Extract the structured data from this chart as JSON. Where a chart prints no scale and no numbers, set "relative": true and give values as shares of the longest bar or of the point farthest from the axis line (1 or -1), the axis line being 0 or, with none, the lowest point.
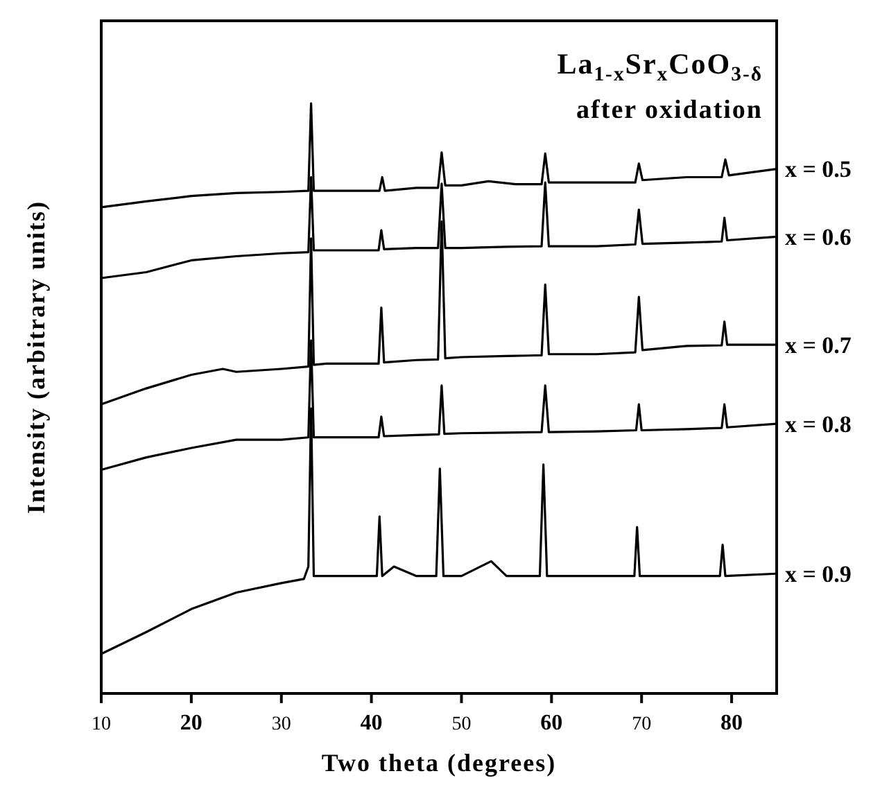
{
  "chart_data": {
    "type": "line",
    "title": "La$_{1-x}$Sr$_{x}$CoO$_{3-δ}$",
    "subtitle": "after oxidation",
    "xlabel": "Two theta (degrees)",
    "ylabel": "Intensity (arbitrary units)",
    "relative": true,
    "xlim": [
      10,
      85
    ],
    "xticks": [
      10,
      20,
      30,
      40,
      50,
      60,
      70,
      80
    ],
    "legend": false,
    "grid": false,
    "marker": "none",
    "line_style": "solid",
    "series": [
      {
        "name": "x = 0.5",
        "color": "#000000",
        "x": [
          10,
          15,
          20,
          25,
          30,
          33.0,
          33.3,
          33.6,
          35,
          40,
          40.9,
          41.2,
          41.5,
          45,
          47.4,
          47.8,
          48.2,
          50,
          53,
          56,
          58.9,
          59.3,
          59.7,
          65,
          69.3,
          69.7,
          70.1,
          75,
          78.9,
          79.3,
          79.7,
          85
        ],
        "values": [
          0.824,
          0.834,
          0.843,
          0.848,
          0.85,
          0.852,
          1.0,
          0.852,
          0.852,
          0.852,
          0.852,
          0.875,
          0.852,
          0.857,
          0.857,
          0.917,
          0.861,
          0.861,
          0.868,
          0.863,
          0.863,
          0.915,
          0.866,
          0.866,
          0.866,
          0.898,
          0.87,
          0.875,
          0.875,
          0.905,
          0.878,
          0.889
        ]
      },
      {
        "name": "x = 0.6",
        "color": "#000000",
        "x": [
          10,
          15,
          20,
          25,
          30,
          33.0,
          33.3,
          33.6,
          35,
          40,
          40.8,
          41.1,
          41.4,
          45,
          47.4,
          47.8,
          48.2,
          50,
          55,
          58.9,
          59.3,
          59.7,
          65,
          69.3,
          69.7,
          70.1,
          75,
          78.9,
          79.2,
          79.5,
          85
        ],
        "values": [
          0.704,
          0.714,
          0.734,
          0.741,
          0.746,
          0.748,
          0.875,
          0.751,
          0.751,
          0.751,
          0.751,
          0.785,
          0.753,
          0.755,
          0.755,
          0.864,
          0.755,
          0.755,
          0.757,
          0.758,
          0.866,
          0.758,
          0.758,
          0.761,
          0.82,
          0.762,
          0.764,
          0.766,
          0.806,
          0.768,
          0.774
        ]
      },
      {
        "name": "x = 0.7",
        "color": "#000000",
        "x": [
          10,
          15,
          20,
          23.5,
          25,
          30,
          33.0,
          33.3,
          33.6,
          35,
          40,
          40.8,
          41.1,
          41.4,
          45,
          47.4,
          47.8,
          48.2,
          50,
          55,
          58.9,
          59.3,
          59.7,
          65,
          69.3,
          69.7,
          70.1,
          75,
          78.9,
          79.2,
          79.5,
          85
        ],
        "values": [
          0.49,
          0.517,
          0.54,
          0.55,
          0.545,
          0.55,
          0.554,
          0.771,
          0.557,
          0.559,
          0.559,
          0.559,
          0.654,
          0.561,
          0.565,
          0.566,
          0.8,
          0.568,
          0.57,
          0.572,
          0.573,
          0.693,
          0.575,
          0.575,
          0.578,
          0.672,
          0.582,
          0.589,
          0.59,
          0.63,
          0.591,
          0.591
        ]
      },
      {
        "name": "x = 0.8",
        "color": "#000000",
        "x": [
          10,
          15,
          20,
          25,
          30,
          33.0,
          33.3,
          33.6,
          35,
          40,
          40.8,
          41.1,
          41.4,
          45,
          47.5,
          47.8,
          48.1,
          50,
          55,
          58.9,
          59.3,
          59.7,
          65,
          69.4,
          69.7,
          70.0,
          75,
          78.9,
          79.2,
          79.5,
          85
        ],
        "values": [
          0.379,
          0.4,
          0.416,
          0.43,
          0.43,
          0.434,
          0.598,
          0.434,
          0.434,
          0.434,
          0.434,
          0.469,
          0.436,
          0.438,
          0.439,
          0.522,
          0.44,
          0.441,
          0.442,
          0.443,
          0.522,
          0.443,
          0.444,
          0.446,
          0.49,
          0.446,
          0.448,
          0.45,
          0.49,
          0.451,
          0.457
        ]
      },
      {
        "name": "x = 0.9",
        "color": "#000000",
        "x": [
          10,
          15,
          20,
          25,
          30,
          32.5,
          33.0,
          33.3,
          33.6,
          35,
          40,
          40.6,
          40.9,
          41.2,
          42.5,
          45,
          47.2,
          47.6,
          48.0,
          50,
          53.3,
          55,
          58.7,
          59.1,
          59.5,
          65,
          69.2,
          69.5,
          69.8,
          75,
          78.7,
          79.0,
          79.3,
          85
        ],
        "values": [
          0.067,
          0.104,
          0.143,
          0.171,
          0.187,
          0.194,
          0.215,
          0.483,
          0.199,
          0.199,
          0.199,
          0.199,
          0.3,
          0.199,
          0.215,
          0.199,
          0.199,
          0.381,
          0.199,
          0.199,
          0.224,
          0.199,
          0.199,
          0.388,
          0.199,
          0.199,
          0.199,
          0.282,
          0.199,
          0.199,
          0.199,
          0.252,
          0.199,
          0.203
        ]
      }
    ]
  }
}
